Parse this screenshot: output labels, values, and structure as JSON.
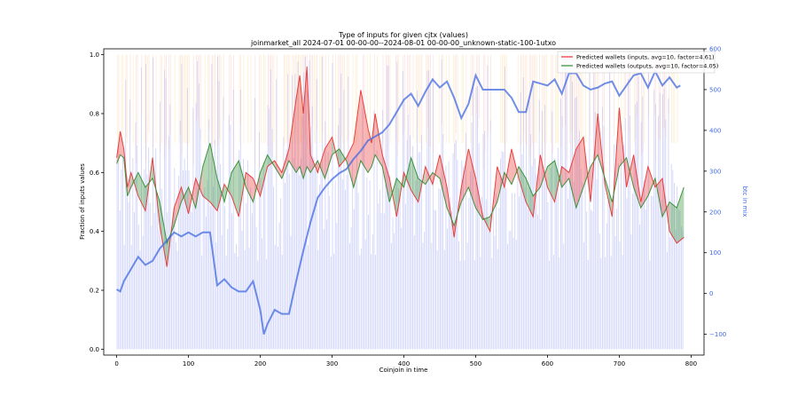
{
  "chart_data": {
    "type": "line",
    "title": "Type of inputs for given cjtx (values)",
    "subtitle": "joinmarket_all 2024-07-01 00-00-00--2024-08-01 00-00-00_unknown-static-100-1utxo",
    "xlabel": "Coinjoin in time",
    "ylabel": "Fraction of inputs values",
    "y2label": "btc in mix",
    "xlim": [
      -18,
      818
    ],
    "ylim": [
      -0.02,
      1.02
    ],
    "y2lim": [
      -151,
      600
    ],
    "x_ticks": [
      0,
      100,
      200,
      300,
      400,
      500,
      600,
      700,
      800
    ],
    "y_ticks": [
      0.0,
      0.2,
      0.4,
      0.6,
      0.8,
      1.0
    ],
    "y_tick_labels": [
      "0.0",
      "0.2",
      "0.4",
      "0.6",
      "0.8",
      "1.0"
    ],
    "y2_ticks": [
      -100,
      0,
      100,
      200,
      300,
      400,
      500,
      600
    ],
    "y2_tick_labels": [
      "−100",
      "0",
      "100",
      "200",
      "300",
      "400",
      "500",
      "600"
    ],
    "legend_position": "top-right",
    "grid": false,
    "background_bars": "dense vertical bars per coinjoin (blue, orange, pink, light purple)",
    "series": [
      {
        "name": "Predicted wallets (inputs, avg=10, factor=4.61)",
        "color": "#e8302f",
        "x": [
          0,
          5,
          10,
          15,
          20,
          30,
          40,
          50,
          60,
          70,
          80,
          90,
          100,
          110,
          120,
          130,
          140,
          150,
          160,
          170,
          180,
          190,
          200,
          210,
          220,
          230,
          240,
          250,
          255,
          260,
          265,
          270,
          280,
          290,
          300,
          310,
          320,
          330,
          340,
          350,
          355,
          360,
          370,
          380,
          390,
          400,
          410,
          420,
          430,
          440,
          450,
          460,
          470,
          480,
          490,
          500,
          510,
          520,
          530,
          540,
          550,
          560,
          570,
          580,
          590,
          600,
          610,
          620,
          630,
          640,
          650,
          660,
          670,
          680,
          690,
          700,
          710,
          720,
          730,
          740,
          750,
          760,
          770,
          780,
          790
        ],
        "y": [
          0.65,
          0.74,
          0.68,
          0.55,
          0.6,
          0.52,
          0.47,
          0.65,
          0.42,
          0.28,
          0.48,
          0.55,
          0.46,
          0.58,
          0.52,
          0.5,
          0.47,
          0.56,
          0.52,
          0.45,
          0.6,
          0.58,
          0.52,
          0.62,
          0.64,
          0.6,
          0.68,
          0.85,
          0.93,
          0.8,
          0.96,
          0.66,
          0.6,
          0.68,
          0.72,
          0.62,
          0.65,
          0.7,
          0.88,
          0.75,
          0.7,
          0.8,
          0.66,
          0.58,
          0.45,
          0.6,
          0.54,
          0.5,
          0.62,
          0.56,
          0.66,
          0.55,
          0.38,
          0.55,
          0.68,
          0.58,
          0.45,
          0.4,
          0.62,
          0.55,
          0.68,
          0.58,
          0.5,
          0.45,
          0.66,
          0.55,
          0.5,
          0.62,
          0.6,
          0.68,
          0.72,
          0.5,
          0.8,
          0.56,
          0.45,
          0.82,
          0.55,
          0.66,
          0.5,
          0.62,
          0.55,
          0.58,
          0.4,
          0.36,
          0.38
        ]
      },
      {
        "name": "Predicted wallets (outputs, avg=10, factor=4.05)",
        "color": "#2e8b2e",
        "x": [
          0,
          5,
          10,
          15,
          20,
          30,
          40,
          50,
          60,
          70,
          80,
          90,
          100,
          110,
          120,
          130,
          140,
          150,
          160,
          170,
          180,
          190,
          200,
          210,
          220,
          230,
          240,
          250,
          255,
          260,
          265,
          270,
          280,
          290,
          300,
          310,
          320,
          330,
          340,
          350,
          355,
          360,
          370,
          380,
          390,
          400,
          410,
          420,
          430,
          440,
          450,
          460,
          470,
          480,
          490,
          500,
          510,
          520,
          530,
          540,
          550,
          560,
          570,
          580,
          590,
          600,
          610,
          620,
          630,
          640,
          650,
          660,
          670,
          680,
          690,
          700,
          710,
          720,
          730,
          740,
          750,
          760,
          770,
          780,
          790
        ],
        "y": [
          0.63,
          0.66,
          0.65,
          0.52,
          0.55,
          0.6,
          0.55,
          0.58,
          0.5,
          0.36,
          0.42,
          0.5,
          0.55,
          0.48,
          0.62,
          0.7,
          0.58,
          0.5,
          0.6,
          0.64,
          0.55,
          0.5,
          0.6,
          0.66,
          0.62,
          0.58,
          0.64,
          0.6,
          0.62,
          0.58,
          0.62,
          0.6,
          0.64,
          0.58,
          0.66,
          0.68,
          0.64,
          0.55,
          0.64,
          0.6,
          0.62,
          0.66,
          0.62,
          0.5,
          0.58,
          0.55,
          0.65,
          0.58,
          0.56,
          0.6,
          0.58,
          0.48,
          0.42,
          0.5,
          0.55,
          0.48,
          0.44,
          0.45,
          0.5,
          0.6,
          0.56,
          0.62,
          0.58,
          0.52,
          0.55,
          0.62,
          0.64,
          0.55,
          0.58,
          0.48,
          0.55,
          0.62,
          0.66,
          0.58,
          0.5,
          0.62,
          0.65,
          0.55,
          0.48,
          0.52,
          0.58,
          0.45,
          0.5,
          0.48,
          0.55
        ]
      },
      {
        "name": "btc in mix",
        "color": "#4169e1",
        "axis": "right",
        "x": [
          0,
          5,
          10,
          20,
          30,
          40,
          50,
          60,
          70,
          80,
          90,
          100,
          110,
          120,
          130,
          140,
          150,
          160,
          170,
          180,
          190,
          200,
          205,
          210,
          220,
          230,
          240,
          250,
          260,
          270,
          280,
          290,
          300,
          310,
          320,
          330,
          340,
          350,
          360,
          370,
          380,
          390,
          400,
          410,
          420,
          430,
          440,
          450,
          460,
          470,
          480,
          490,
          500,
          510,
          520,
          530,
          540,
          550,
          560,
          570,
          580,
          590,
          600,
          610,
          620,
          630,
          640,
          650,
          660,
          670,
          680,
          690,
          700,
          710,
          720,
          730,
          740,
          750,
          760,
          770,
          780,
          785
        ],
        "y": [
          10,
          5,
          30,
          60,
          90,
          70,
          80,
          110,
          130,
          150,
          140,
          150,
          140,
          150,
          150,
          20,
          35,
          15,
          5,
          5,
          30,
          -40,
          -100,
          -75,
          -40,
          -50,
          -50,
          30,
          105,
          175,
          235,
          260,
          280,
          295,
          305,
          330,
          350,
          375,
          385,
          395,
          415,
          445,
          475,
          490,
          460,
          495,
          525,
          505,
          520,
          480,
          430,
          465,
          535,
          500,
          500,
          500,
          500,
          480,
          445,
          445,
          520,
          515,
          510,
          525,
          490,
          540,
          540,
          510,
          500,
          505,
          515,
          520,
          485,
          510,
          535,
          540,
          505,
          545,
          510,
          530,
          505,
          510
        ]
      }
    ]
  }
}
